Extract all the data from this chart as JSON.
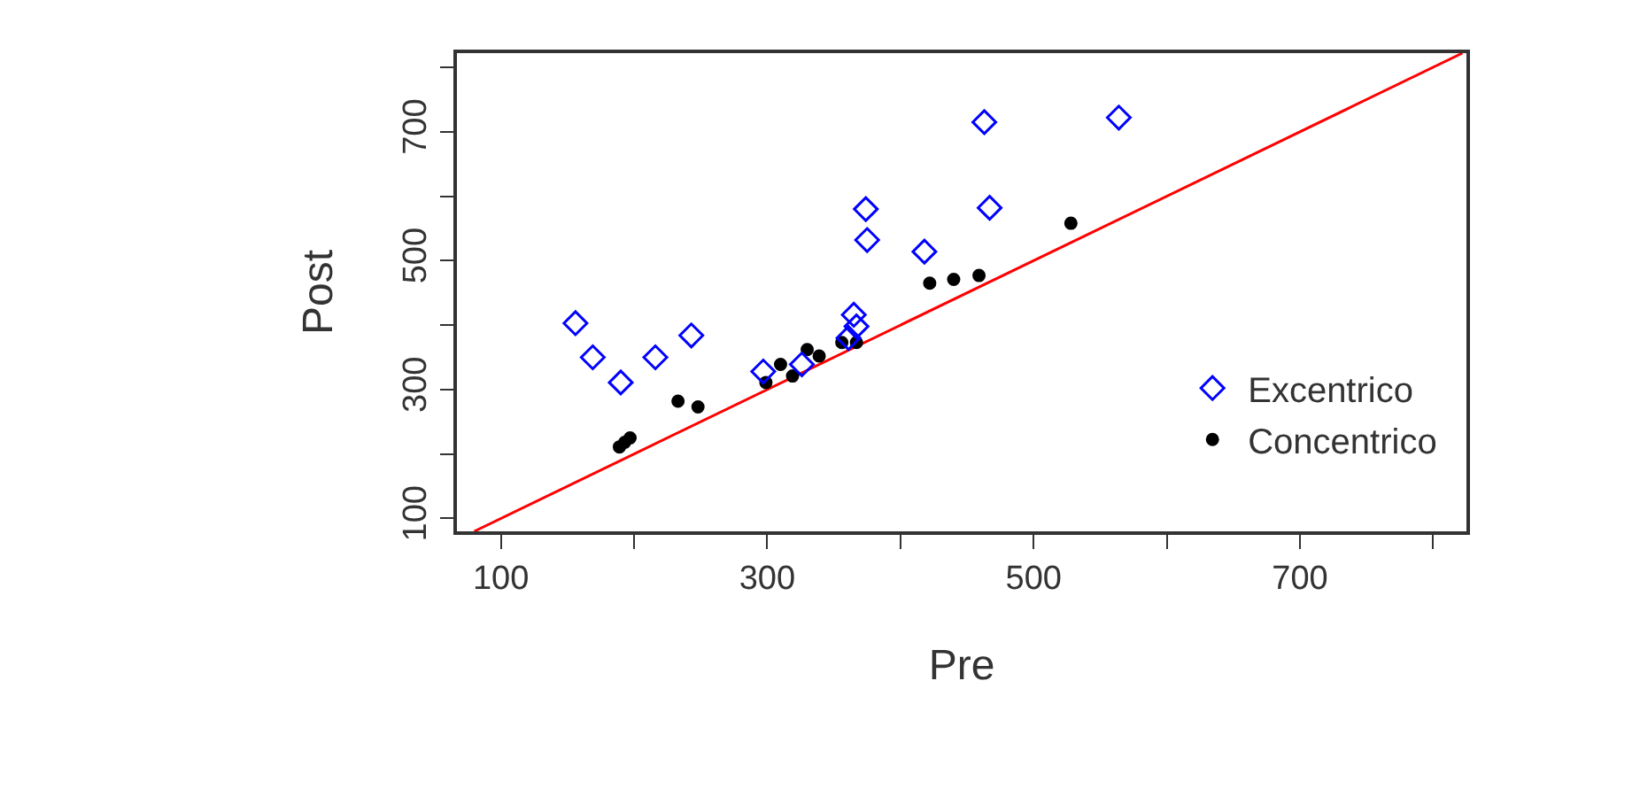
{
  "chart_data": {
    "type": "scatter",
    "xlabel": "Pre",
    "ylabel": "Post",
    "xlim": [
      67,
      825
    ],
    "ylim": [
      80,
      822
    ],
    "xticks": [
      100,
      {
        "value": 200,
        "label": null
      },
      300,
      {
        "value": 400,
        "label": null
      },
      500,
      {
        "value": 600,
        "label": null
      },
      700,
      {
        "value": 800,
        "label": null
      }
    ],
    "yticks": [
      100,
      {
        "value": 200,
        "label": null
      },
      300,
      {
        "value": 400,
        "label": null
      },
      500,
      {
        "value": 600,
        "label": null
      },
      700,
      {
        "value": 800,
        "label": null
      }
    ],
    "grid": false,
    "legend": "bottom right",
    "series": [
      {
        "name": "Excentrico",
        "color": "#0000ff",
        "marker": "diamond",
        "x": [
          156,
          169,
          190,
          216,
          243,
          297,
          326,
          365,
          367,
          361,
          374,
          375,
          418,
          463,
          467,
          564
        ],
        "values": [
          403,
          350,
          311,
          350,
          384,
          328,
          339,
          416,
          398,
          380,
          580,
          532,
          514,
          715,
          582,
          722
        ]
      },
      {
        "name": "Concentrico",
        "color": "#000000",
        "marker": "circle",
        "x": [
          189,
          193,
          197,
          233,
          248,
          299,
          310,
          319,
          330,
          339,
          356,
          367,
          422,
          440,
          459,
          528
        ],
        "values": [
          211,
          218,
          225,
          282,
          273,
          311,
          339,
          321,
          362,
          352,
          373,
          373,
          465,
          471,
          477,
          558
        ]
      },
      {
        "type": "line",
        "color": "#ff0000",
        "marker": "none",
        "x": [
          80,
          822
        ],
        "values": [
          80,
          822
        ]
      }
    ]
  }
}
